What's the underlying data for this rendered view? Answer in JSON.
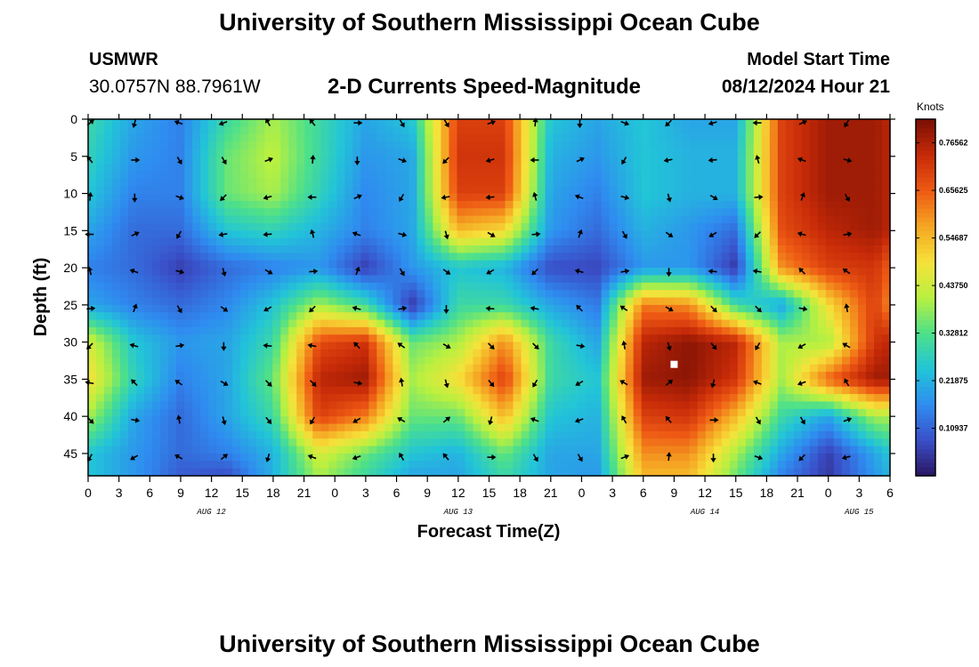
{
  "header": {
    "title": "University of Southern Mississippi Ocean Cube",
    "station_name": "USMWR",
    "station_coords": "30.0757N  88.7961W",
    "product_title": "2-D Currents Speed-Magnitude",
    "model_start_label": "Model Start Time",
    "model_start_time": "08/12/2024 Hour 21"
  },
  "footer": {
    "title": "University of Southern Mississippi Ocean Cube"
  },
  "chart_data": {
    "type": "heatmap",
    "title": "2-D Currents Speed-Magnitude",
    "xlabel": "Forecast Time(Z)",
    "ylabel": "Depth (ft)",
    "units": "Knots",
    "x_range_hours": [
      0,
      78
    ],
    "y_range_ft": [
      0,
      48
    ],
    "x_tick_hours": [
      0,
      3,
      6,
      9,
      12,
      15,
      18,
      21,
      24,
      27,
      30,
      33,
      36,
      39,
      42,
      45,
      48,
      51,
      54,
      57,
      60,
      63,
      66,
      69,
      72,
      75,
      78
    ],
    "x_tick_labels": [
      "0",
      "3",
      "6",
      "9",
      "12",
      "15",
      "18",
      "21",
      "0",
      "3",
      "6",
      "9",
      "12",
      "15",
      "18",
      "21",
      "0",
      "3",
      "6",
      "9",
      "12",
      "15",
      "18",
      "21",
      "0",
      "3",
      "6"
    ],
    "date_labels": [
      {
        "text": "AUG 12",
        "hour": 12
      },
      {
        "text": "AUG 13",
        "hour": 36
      },
      {
        "text": "AUG 14",
        "hour": 60
      },
      {
        "text": "AUG 15",
        "hour": 75
      }
    ],
    "y_ticks": [
      0,
      5,
      10,
      15,
      20,
      25,
      30,
      35,
      40,
      45
    ],
    "y_tick_labels": [
      "0",
      "5",
      "10",
      "15",
      "20",
      "25",
      "30",
      "35",
      "40",
      "45"
    ],
    "colorbar": {
      "min": 0.0,
      "max": 0.82,
      "ticks": [
        0.10937,
        0.21875,
        0.32812,
        0.4375,
        0.54687,
        0.65625,
        0.76562
      ],
      "tick_labels": [
        "0.10937",
        "0.21875",
        "0.32812",
        "0.43750",
        "0.54687",
        "0.65625",
        "0.76562"
      ],
      "colors": [
        "#2a1560",
        "#3a4fc8",
        "#2f8cf0",
        "#22c4d8",
        "#4de08a",
        "#b8f040",
        "#f6e23a",
        "#f5a623",
        "#ee5a14",
        "#c62a08",
        "#7a0f04"
      ]
    },
    "grid_hours": [
      0,
      4.5,
      9,
      13.5,
      18,
      22.5,
      27,
      31.5,
      36,
      40.5,
      45,
      49.5,
      54,
      58.5,
      63,
      67.5,
      72,
      76.5,
      78
    ],
    "grid_depths": [
      0,
      5,
      10,
      15,
      20,
      25,
      30,
      35,
      40,
      45,
      48
    ],
    "speed_grid": [
      [
        0.3,
        0.2,
        0.15,
        0.3,
        0.4,
        0.3,
        0.2,
        0.25,
        0.7,
        0.7,
        0.25,
        0.2,
        0.25,
        0.2,
        0.2,
        0.7,
        0.78,
        0.78,
        0.75
      ],
      [
        0.28,
        0.18,
        0.15,
        0.35,
        0.42,
        0.3,
        0.18,
        0.2,
        0.72,
        0.72,
        0.22,
        0.18,
        0.25,
        0.22,
        0.22,
        0.7,
        0.78,
        0.78,
        0.75
      ],
      [
        0.25,
        0.15,
        0.15,
        0.35,
        0.4,
        0.28,
        0.16,
        0.2,
        0.7,
        0.7,
        0.2,
        0.15,
        0.25,
        0.22,
        0.22,
        0.7,
        0.78,
        0.78,
        0.75
      ],
      [
        0.2,
        0.12,
        0.12,
        0.25,
        0.28,
        0.22,
        0.15,
        0.2,
        0.55,
        0.5,
        0.18,
        0.12,
        0.22,
        0.18,
        0.12,
        0.68,
        0.75,
        0.78,
        0.75
      ],
      [
        0.15,
        0.12,
        0.06,
        0.12,
        0.15,
        0.18,
        0.06,
        0.18,
        0.25,
        0.22,
        0.08,
        0.07,
        0.18,
        0.18,
        0.05,
        0.6,
        0.7,
        0.72,
        0.65
      ],
      [
        0.2,
        0.15,
        0.12,
        0.16,
        0.25,
        0.4,
        0.3,
        0.05,
        0.3,
        0.3,
        0.2,
        0.14,
        0.62,
        0.6,
        0.3,
        0.2,
        0.5,
        0.7,
        0.6
      ],
      [
        0.45,
        0.25,
        0.18,
        0.2,
        0.3,
        0.68,
        0.72,
        0.35,
        0.4,
        0.6,
        0.3,
        0.2,
        0.75,
        0.8,
        0.75,
        0.4,
        0.4,
        0.72,
        0.75
      ],
      [
        0.5,
        0.28,
        0.15,
        0.2,
        0.35,
        0.75,
        0.78,
        0.4,
        0.5,
        0.7,
        0.3,
        0.25,
        0.78,
        0.8,
        0.72,
        0.4,
        0.65,
        0.78,
        0.78
      ],
      [
        0.4,
        0.2,
        0.12,
        0.2,
        0.3,
        0.7,
        0.62,
        0.35,
        0.35,
        0.55,
        0.25,
        0.22,
        0.7,
        0.72,
        0.55,
        0.3,
        0.2,
        0.4,
        0.4
      ],
      [
        0.25,
        0.18,
        0.12,
        0.15,
        0.22,
        0.45,
        0.35,
        0.25,
        0.22,
        0.35,
        0.2,
        0.2,
        0.6,
        0.6,
        0.4,
        0.2,
        0.06,
        0.2,
        0.25
      ],
      [
        0.25,
        0.18,
        0.1,
        0.08,
        0.22,
        0.4,
        0.3,
        0.2,
        0.2,
        0.3,
        0.2,
        0.18,
        0.55,
        0.55,
        0.35,
        0.15,
        0.05,
        0.18,
        0.22
      ]
    ],
    "vectors": {
      "cols": 18,
      "rows": 10,
      "start_hour": 0,
      "step_hours": 4.33,
      "start_depth": 0.5,
      "step_depth": 5
    },
    "marker": {
      "hour": 57,
      "depth": 33
    }
  }
}
